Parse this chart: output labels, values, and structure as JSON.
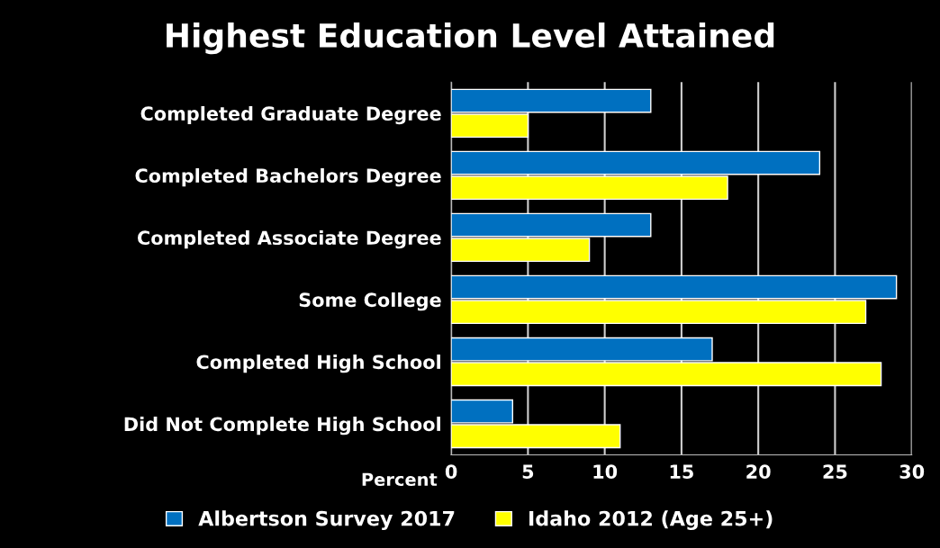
{
  "chart_data": {
    "type": "bar",
    "orientation": "horizontal",
    "title": "Highest Education Level Attained",
    "xlabel": "Percent",
    "categories": [
      "Completed Graduate Degree",
      "Completed Bachelors Degree",
      "Completed Associate Degree",
      "Some College",
      "Completed High School",
      "Did Not Complete High School"
    ],
    "series": [
      {
        "name": "Albertson Survey 2017",
        "color": "#0070c0",
        "values": [
          13,
          24,
          13,
          29,
          17,
          4
        ]
      },
      {
        "name": "Idaho 2012 (Age 25+)",
        "color": "#ffff00",
        "values": [
          5,
          18,
          9,
          27,
          28,
          11
        ]
      }
    ],
    "xlim": [
      0,
      30
    ],
    "xticks": [
      0,
      5,
      10,
      15,
      20,
      25,
      30
    ],
    "grid": "x",
    "legend": "bottom"
  }
}
